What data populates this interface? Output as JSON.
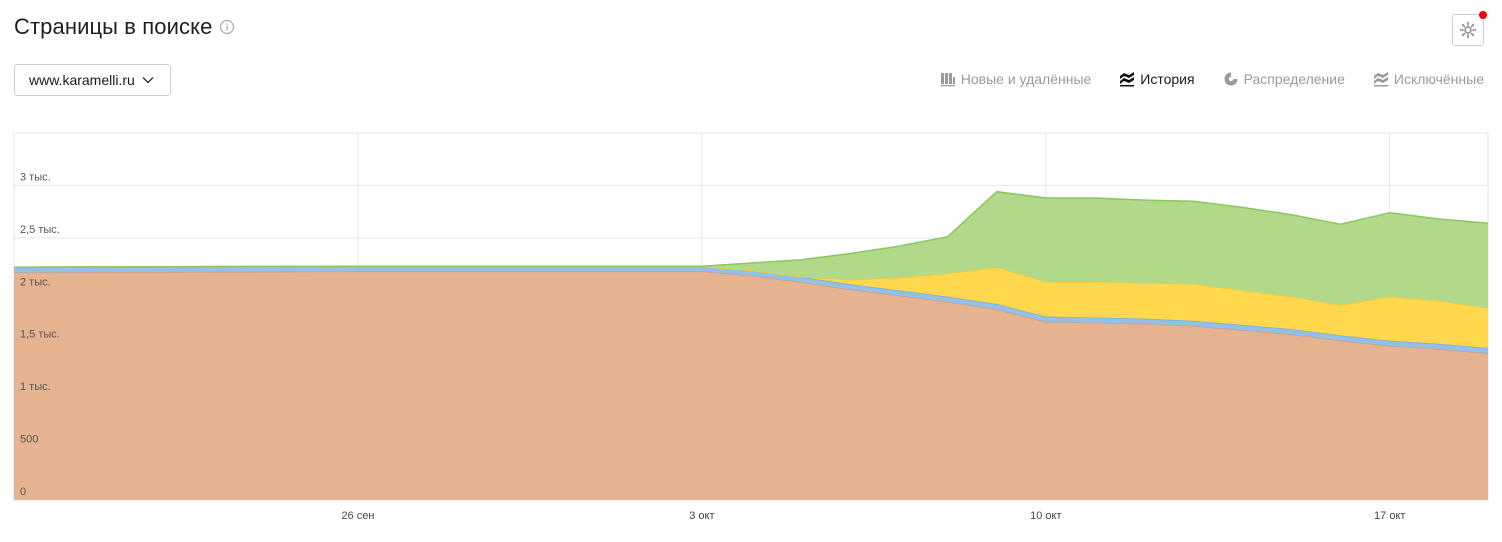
{
  "header": {
    "title": "Страницы в поиске"
  },
  "site_select": {
    "value": "www.karamelli.ru"
  },
  "tabs": [
    {
      "label": "Новые и удалённые",
      "icon": "bar-chart-icon",
      "active": false
    },
    {
      "label": "История",
      "icon": "history-icon",
      "active": true
    },
    {
      "label": "Распределение",
      "icon": "pie-chart-icon",
      "active": false
    },
    {
      "label": "Исключённые",
      "icon": "excluded-icon",
      "active": false
    }
  ],
  "chart_data": {
    "type": "area",
    "stacked": true,
    "x": [
      "2023-09-19",
      "2023-09-26",
      "2023-10-03",
      "2023-10-04",
      "2023-10-05",
      "2023-10-06",
      "2023-10-07",
      "2023-10-08",
      "2023-10-09",
      "2023-10-10",
      "2023-10-11",
      "2023-10-12",
      "2023-10-13",
      "2023-10-14",
      "2023-10-15",
      "2023-10-16",
      "2023-10-17",
      "2023-10-18",
      "2023-10-19"
    ],
    "x_tick_labels": [
      "26 сен",
      "3 окт",
      "10 окт",
      "17 окт"
    ],
    "y_tick_labels": [
      "0",
      "500",
      "1 тыс.",
      "1,5 тыс.",
      "2 тыс.",
      "2,5 тыс.",
      "3 тыс."
    ],
    "y_ticks": [
      0,
      500,
      1000,
      1500,
      2000,
      2500,
      3000
    ],
    "ylim": [
      0,
      3500
    ],
    "grid": true,
    "series": [
      {
        "color": "#e5b38f",
        "line": "#d99a7e",
        "values": [
          2170,
          2180,
          2180,
          2140,
          2080,
          2010,
          1950,
          1890,
          1820,
          1700,
          1690,
          1680,
          1660,
          1620,
          1580,
          1520,
          1470,
          1440,
          1400
        ]
      },
      {
        "color": "#92c0e6",
        "line": "#7aaedc",
        "values": [
          50,
          50,
          50,
          50,
          50,
          50,
          50,
          50,
          50,
          50,
          50,
          50,
          50,
          50,
          50,
          50,
          50,
          50,
          50
        ]
      },
      {
        "color": "#ffd84d",
        "line": "#f7c935",
        "values": [
          0,
          0,
          0,
          0,
          0,
          40,
          120,
          220,
          350,
          330,
          340,
          340,
          350,
          330,
          310,
          290,
          420,
          410,
          380
        ]
      },
      {
        "color": "#b2d98a",
        "line": "#8cc65f",
        "values": [
          0,
          0,
          0,
          70,
          160,
          250,
          300,
          350,
          720,
          800,
          800,
          790,
          790,
          790,
          780,
          770,
          800,
          780,
          810
        ]
      }
    ]
  }
}
